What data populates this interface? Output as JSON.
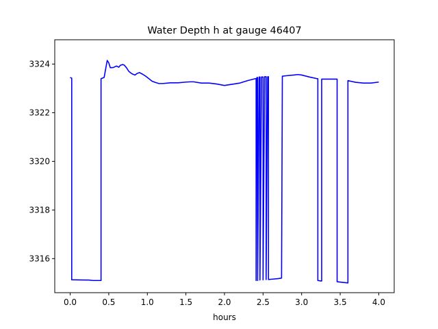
{
  "chart_data": {
    "type": "line",
    "title": "Water Depth h at gauge 46407",
    "xlabel": "hours",
    "ylabel": "",
    "xlim": [
      -0.2,
      4.2
    ],
    "ylim": [
      3314.6,
      3325.0
    ],
    "xticks": [
      0.0,
      0.5,
      1.0,
      1.5,
      2.0,
      2.5,
      3.0,
      3.5,
      4.0
    ],
    "xtick_labels": [
      "0.0",
      "0.5",
      "1.0",
      "1.5",
      "2.0",
      "2.5",
      "3.0",
      "3.5",
      "4.0"
    ],
    "yticks": [
      3316,
      3318,
      3320,
      3322,
      3324
    ],
    "ytick_labels": [
      "3316",
      "3318",
      "3320",
      "3322",
      "3324"
    ],
    "grid": false,
    "series": [
      {
        "color": "#0000ff",
        "x": [
          0.0,
          0.02,
          0.02,
          0.2,
          0.24,
          0.3,
          0.38,
          0.4,
          0.4,
          0.44,
          0.46,
          0.48,
          0.5,
          0.52,
          0.56,
          0.6,
          0.63,
          0.65,
          0.68,
          0.7,
          0.73,
          0.76,
          0.8,
          0.84,
          0.87,
          0.9,
          0.94,
          0.98,
          1.02,
          1.06,
          1.1,
          1.15,
          1.2,
          1.3,
          1.4,
          1.5,
          1.56,
          1.6,
          1.7,
          1.8,
          1.9,
          2.0,
          2.1,
          2.2,
          2.3,
          2.4,
          2.41,
          2.41,
          2.42,
          2.43,
          2.43,
          2.45,
          2.46,
          2.46,
          2.48,
          2.5,
          2.5,
          2.52,
          2.54,
          2.54,
          2.56,
          2.57,
          2.57,
          2.6,
          2.7,
          2.74,
          2.75,
          2.8,
          2.9,
          2.95,
          3.0,
          3.1,
          3.2,
          3.21,
          3.21,
          3.25,
          3.26,
          3.26,
          3.4,
          3.46,
          3.46,
          3.6,
          3.6,
          3.7,
          3.8,
          3.9,
          4.0
        ],
        "y": [
          3323.45,
          3323.42,
          3315.13,
          3315.12,
          3315.12,
          3315.1,
          3315.1,
          3315.1,
          3323.4,
          3323.45,
          3323.8,
          3324.15,
          3324.05,
          3323.85,
          3323.86,
          3323.92,
          3323.87,
          3323.95,
          3323.98,
          3323.96,
          3323.85,
          3323.7,
          3323.6,
          3323.55,
          3323.62,
          3323.65,
          3323.58,
          3323.5,
          3323.4,
          3323.3,
          3323.25,
          3323.2,
          3323.2,
          3323.23,
          3323.23,
          3323.26,
          3323.27,
          3323.27,
          3323.22,
          3323.22,
          3323.18,
          3323.12,
          3323.17,
          3323.22,
          3323.32,
          3323.4,
          3323.4,
          3315.1,
          3323.45,
          3323.45,
          3315.1,
          3323.47,
          3323.47,
          3315.12,
          3323.47,
          3323.47,
          3315.13,
          3323.48,
          3323.48,
          3315.14,
          3323.48,
          3323.48,
          3315.14,
          3315.15,
          3315.18,
          3315.2,
          3323.5,
          3323.52,
          3323.55,
          3323.57,
          3323.55,
          3323.47,
          3323.4,
          3323.4,
          3315.1,
          3315.08,
          3315.08,
          3323.38,
          3323.38,
          3323.38,
          3315.05,
          3315.0,
          3323.32,
          3323.25,
          3323.22,
          3323.22,
          3323.26
        ]
      }
    ]
  }
}
